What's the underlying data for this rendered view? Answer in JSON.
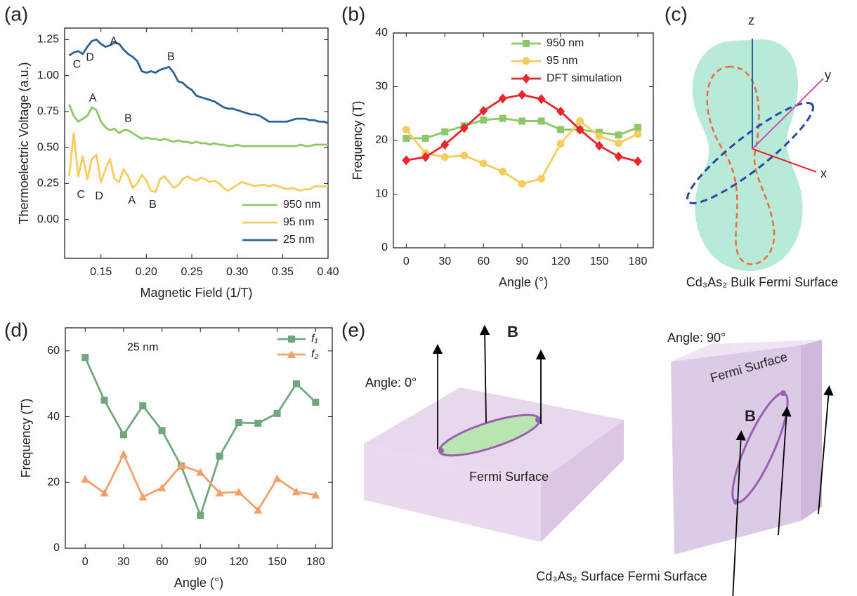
{
  "panel_labels": [
    "(a)",
    "(b)",
    "(c)",
    "(d)",
    "(e)"
  ],
  "chart_data": [
    {
      "type": "line",
      "x_label": "Magnetic Field (1/T)",
      "y_label": "Thermoelectric Voltage (a.u.)",
      "xlim": [
        0.11,
        0.4
      ],
      "ylim": [
        -0.27,
        1.33
      ],
      "xticks": [
        {
          "value": 0.15,
          "label": "0.15"
        },
        {
          "value": 0.2,
          "label": "0.20"
        },
        {
          "value": 0.25,
          "label": "0.25"
        },
        {
          "value": 0.3,
          "label": "0.30"
        },
        {
          "value": 0.35,
          "label": "0.35"
        },
        {
          "value": 0.4,
          "label": "0.40"
        }
      ],
      "yticks": [
        {
          "value": 0,
          "label": "0.00"
        },
        {
          "value": 0.25,
          "label": "0.25"
        },
        {
          "value": 0.5,
          "label": "0.50"
        },
        {
          "value": 0.75,
          "label": "0.75"
        },
        {
          "value": 1,
          "label": "1.00"
        },
        {
          "value": 1.25,
          "label": "1.25"
        }
      ],
      "legend": "lower right",
      "x": [
        0.115,
        0.12,
        0.125,
        0.13,
        0.135,
        0.14,
        0.145,
        0.15,
        0.155,
        0.16,
        0.165,
        0.17,
        0.175,
        0.18,
        0.185,
        0.19,
        0.195,
        0.2,
        0.205,
        0.21,
        0.215,
        0.22,
        0.225,
        0.23,
        0.235,
        0.24,
        0.245,
        0.25,
        0.255,
        0.26,
        0.265,
        0.27,
        0.275,
        0.28,
        0.285,
        0.29,
        0.295,
        0.3,
        0.305,
        0.31,
        0.315,
        0.32,
        0.325,
        0.33,
        0.335,
        0.34,
        0.345,
        0.35,
        0.355,
        0.36,
        0.365,
        0.37,
        0.375,
        0.38,
        0.385,
        0.39,
        0.395,
        0.4
      ],
      "series": [
        {
          "name": "950 nm",
          "color": "#8cc865",
          "values": [
            0.8,
            0.72,
            0.68,
            0.7,
            0.72,
            0.78,
            0.76,
            0.68,
            0.64,
            0.62,
            0.63,
            0.6,
            0.62,
            0.62,
            0.6,
            0.58,
            0.56,
            0.57,
            0.56,
            0.56,
            0.55,
            0.56,
            0.55,
            0.54,
            0.55,
            0.54,
            0.54,
            0.53,
            0.54,
            0.53,
            0.53,
            0.52,
            0.53,
            0.52,
            0.52,
            0.51,
            0.51,
            0.52,
            0.51,
            0.51,
            0.51,
            0.51,
            0.51,
            0.51,
            0.51,
            0.51,
            0.51,
            0.51,
            0.51,
            0.51,
            0.51,
            0.52,
            0.51,
            0.51,
            0.52,
            0.52,
            0.52,
            0.52
          ]
        },
        {
          "name": "95 nm",
          "color": "#f5cd5f",
          "values": [
            0.3,
            0.6,
            0.3,
            0.44,
            0.28,
            0.42,
            0.45,
            0.26,
            0.35,
            0.42,
            0.28,
            0.26,
            0.35,
            0.3,
            0.22,
            0.25,
            0.31,
            0.27,
            0.2,
            0.19,
            0.28,
            0.3,
            0.26,
            0.22,
            0.24,
            0.28,
            0.3,
            0.28,
            0.27,
            0.29,
            0.28,
            0.26,
            0.27,
            0.25,
            0.22,
            0.2,
            0.22,
            0.24,
            0.26,
            0.25,
            0.24,
            0.23,
            0.24,
            0.24,
            0.23,
            0.24,
            0.23,
            0.22,
            0.21,
            0.22,
            0.21,
            0.2,
            0.21,
            0.21,
            0.23,
            0.23,
            0.23,
            0.23
          ]
        },
        {
          "name": "25 nm",
          "color": "#2f619a",
          "values": [
            1.14,
            1.16,
            1.17,
            1.15,
            1.2,
            1.24,
            1.25,
            1.22,
            1.2,
            1.21,
            1.23,
            1.22,
            1.18,
            1.15,
            1.13,
            1.1,
            1.03,
            1.02,
            1.03,
            1.02,
            1.04,
            1.05,
            1.06,
            1.02,
            0.96,
            0.95,
            0.92,
            0.9,
            0.86,
            0.85,
            0.84,
            0.83,
            0.82,
            0.8,
            0.78,
            0.77,
            0.77,
            0.76,
            0.75,
            0.74,
            0.73,
            0.73,
            0.72,
            0.7,
            0.68,
            0.68,
            0.68,
            0.68,
            0.68,
            0.69,
            0.7,
            0.7,
            0.7,
            0.69,
            0.69,
            0.68,
            0.68,
            0.67
          ]
        }
      ],
      "annotations": [
        {
          "text": "C",
          "x": 0.1235,
          "y": 1.074,
          "color": "#2f619a"
        },
        {
          "text": "D",
          "x": 0.138,
          "y": 1.123,
          "color": "#2f619a"
        },
        {
          "text": "A",
          "x": 0.164,
          "y": 1.235,
          "color": "#2f619a"
        },
        {
          "text": "B",
          "x": 0.227,
          "y": 1.128,
          "color": "#2f619a"
        },
        {
          "text": "A",
          "x": 0.141,
          "y": 0.84,
          "color": "#8cc865"
        },
        {
          "text": "B",
          "x": 0.18,
          "y": 0.7,
          "color": "#8cc865"
        },
        {
          "text": "C",
          "x": 0.128,
          "y": 0.171,
          "color": "#eaa83a"
        },
        {
          "text": "D",
          "x": 0.148,
          "y": 0.161,
          "color": "#eaa83a"
        },
        {
          "text": "A",
          "x": 0.184,
          "y": 0.132,
          "color": "#eaa83a"
        },
        {
          "text": "B",
          "x": 0.207,
          "y": 0.103,
          "color": "#eaa83a"
        }
      ]
    },
    {
      "type": "line",
      "x_label": "Angle (°)",
      "y_label": "Frequency (T)",
      "xlim": [
        -10,
        192
      ],
      "ylim": [
        0,
        40
      ],
      "xticks": [
        0,
        30,
        60,
        90,
        120,
        150,
        180
      ],
      "yticks": [
        0,
        10,
        20,
        30,
        40
      ],
      "legend": "upper right",
      "x": [
        0,
        15,
        30,
        45,
        60,
        75,
        90,
        105,
        120,
        135,
        150,
        165,
        180
      ],
      "series": [
        {
          "name": "950 nm",
          "color": "#8cc865",
          "marker": "square",
          "values": [
            20.4,
            20.4,
            21.6,
            22.7,
            23.8,
            24.1,
            23.6,
            23.6,
            22,
            22,
            21.5,
            21,
            22.4
          ]
        },
        {
          "name": "95 nm",
          "color": "#f5cd5f",
          "marker": "circle",
          "values": [
            22,
            17.6,
            16.9,
            17.2,
            15.7,
            14.2,
            11.9,
            12.9,
            19.4,
            23.6,
            20.8,
            19.5,
            21.2
          ]
        },
        {
          "name": "DFT simulation",
          "color": "#e8262b",
          "marker": "diamond",
          "values": [
            16.3,
            16.9,
            19.2,
            22.3,
            25.5,
            27.8,
            28.5,
            27.7,
            25.4,
            22,
            19,
            17,
            16.1
          ]
        }
      ]
    },
    {
      "type": "line",
      "x_label": "Angle (°)",
      "y_label": "Frequency (T)",
      "xlim": [
        -15.5,
        193
      ],
      "ylim": [
        0,
        67
      ],
      "xticks": [
        0,
        30,
        60,
        90,
        120,
        150,
        180
      ],
      "yticks": [
        0,
        20,
        40,
        60
      ],
      "legend": "upper right",
      "annotations": [
        {
          "text": "25 nm",
          "x": 45,
          "y": 61,
          "color": "#000000"
        }
      ],
      "x": [
        0,
        15,
        30,
        45,
        60,
        75,
        90,
        105,
        120,
        135,
        150,
        165,
        180
      ],
      "series": [
        {
          "name": "f₁",
          "color": "#6fa87e",
          "marker": "square",
          "values": [
            58,
            45,
            34.5,
            43.3,
            35.8,
            25,
            10,
            28,
            38.2,
            38,
            41,
            50,
            44.4
          ]
        },
        {
          "name": "f₂",
          "color": "#f4a06a",
          "marker": "triangle",
          "values": [
            21,
            16.8,
            28.6,
            15.6,
            18.4,
            25.2,
            23.1,
            16.8,
            17.1,
            11.6,
            21.2,
            17.2,
            16.2
          ]
        }
      ]
    }
  ],
  "diagrams": {
    "bulk": {
      "axes": [
        "z",
        "y",
        "x"
      ],
      "caption": "Cd₃As₂ Bulk Fermi Surface"
    },
    "surface": {
      "field_left": "B",
      "angle_left": "Angle: 0°",
      "fermi_left": "Fermi Surface",
      "angle_right": "Angle: 90°",
      "fermi_right": "Fermi Surface",
      "field_right": "B",
      "caption": "Cd₃As₂ Surface Fermi Surface"
    }
  }
}
